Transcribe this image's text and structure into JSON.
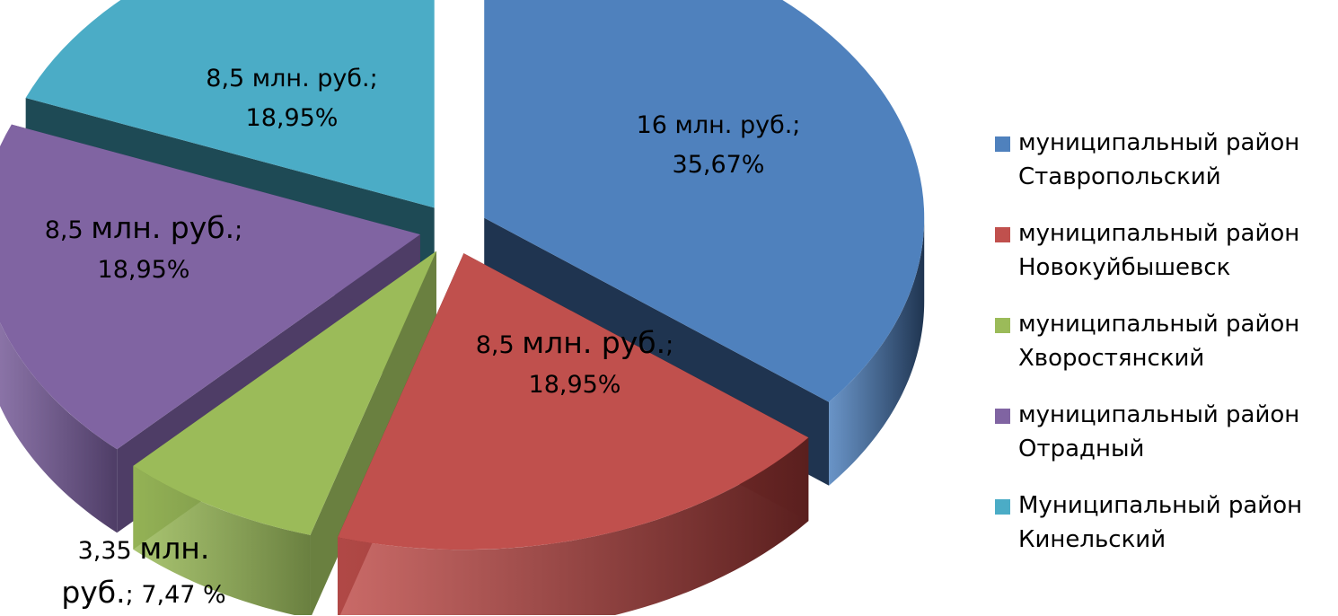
{
  "chart_data": {
    "type": "pie",
    "title": "",
    "categories": [
      "муниципальный район Ставропольский",
      "муниципальный район Новокуйбышевск",
      "муниципальный район Хворостянский",
      "муниципальный район Отрадный",
      "Муниципальный район Кинельский"
    ],
    "values": [
      35.67,
      18.95,
      7.47,
      18.95,
      18.95
    ],
    "amounts_mln_rub": [
      16,
      8.5,
      3.35,
      8.5,
      8.5
    ],
    "colors": [
      "#4F81BD",
      "#C0504D",
      "#9BBB59",
      "#8064A2",
      "#4BACC6"
    ],
    "dark_colors": [
      "#1F3450",
      "#5A1F1E",
      "#6A8040",
      "#4E3D66",
      "#1E4A55"
    ],
    "labels": [
      {
        "amount": "16 млн. руб.;",
        "percent": "35,67%"
      },
      {
        "amount": "8,5 ",
        "amount_big": "млн. руб.",
        "amount_end": ";",
        "percent": "18,95%"
      },
      {
        "amount": "3,35 ",
        "amount_big": "млн.",
        "amount_big2": "руб.",
        "amount_end": "; 7,47 %"
      },
      {
        "amount": "8,5 ",
        "amount_big": "млн. руб.",
        "amount_end": ";",
        "percent": "18,95%"
      },
      {
        "amount": "8,5 млн. руб.;",
        "percent": "18,95%"
      }
    ],
    "legend": {
      "position": "right",
      "items": [
        {
          "line1": "муниципальный район",
          "line2": "Ставропольский"
        },
        {
          "line1": "муниципальный район",
          "line2": "Новокуйбышевск"
        },
        {
          "line1": "муниципальный район",
          "line2": "Хворостянский"
        },
        {
          "line1": "муниципальный район",
          "line2": "Отрадный"
        },
        {
          "line1": "Муниципальный район",
          "line2": "Кинельский"
        }
      ]
    }
  }
}
